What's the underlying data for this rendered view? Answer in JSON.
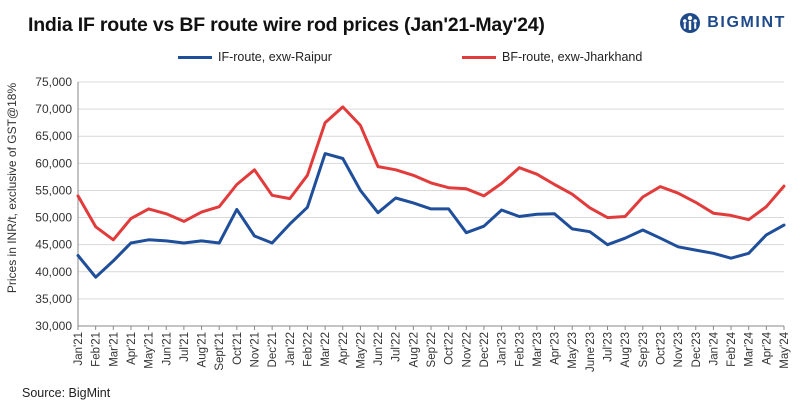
{
  "brand": {
    "name": "BIGMINT",
    "icon": "bigmint-logo-icon"
  },
  "source": "Source: BigMint",
  "colors": {
    "if_route": "#1f4e9a",
    "bf_route": "#e23b3b",
    "grid": "#d9d9d9",
    "axis": "#888888"
  },
  "chart_data": {
    "type": "line",
    "title": "India IF route vs BF route wire rod prices (Jan'21-May'24)",
    "xlabel": "",
    "ylabel": "Prices in INR/t, exclusive of GST@18%",
    "ylim": [
      30000,
      75000
    ],
    "yticks": [
      30000,
      35000,
      40000,
      45000,
      50000,
      55000,
      60000,
      65000,
      70000,
      75000
    ],
    "ytick_labels": [
      "30,000",
      "35,000",
      "40,000",
      "45,000",
      "50,000",
      "55,000",
      "60,000",
      "65,000",
      "70,000",
      "75,000"
    ],
    "grid": true,
    "legend_position": "top",
    "categories": [
      "Jan'21",
      "Feb'21",
      "Mar'21",
      "Apr'21",
      "May'21",
      "Jun'21",
      "Jul'21",
      "Aug'21",
      "Sept'21",
      "Oct'21",
      "Nov'21",
      "Dec'21",
      "Jan'22",
      "Feb'22",
      "Mar'22",
      "Apr'22",
      "May'22",
      "Jun'22",
      "Jul'22",
      "Aug'22",
      "Sep'22",
      "Oct'22",
      "Nov'22",
      "Dec'22",
      "Jan'23",
      "Feb'23",
      "Mar'23",
      "Apr'23",
      "May'23",
      "June'23",
      "Jul'23",
      "Aug'23",
      "Sep'23",
      "Oct'23",
      "Nov'23",
      "Dec'23",
      "Jan'24",
      "Feb'24",
      "Mar'24",
      "Apr'24",
      "May'24"
    ],
    "series": [
      {
        "name": "IF-route, exw-Raipur",
        "color": "#1f4e9a",
        "values": [
          43000,
          39000,
          42000,
          45300,
          45900,
          45700,
          45300,
          45700,
          45300,
          51500,
          46600,
          45300,
          48800,
          51900,
          61800,
          60900,
          55000,
          50900,
          53600,
          52700,
          51600,
          51600,
          47200,
          48400,
          51400,
          50200,
          50600,
          50700,
          47900,
          47400,
          45000,
          46200,
          47700,
          46200,
          44600,
          44000,
          43400,
          42500,
          43400,
          46800,
          48600
        ]
      },
      {
        "name": "BF-route, exw-Jharkhand",
        "color": "#e23b3b",
        "values": [
          54000,
          48300,
          45900,
          49800,
          51600,
          50700,
          49300,
          51000,
          52000,
          56100,
          58800,
          54100,
          53500,
          57800,
          67500,
          70400,
          67000,
          59400,
          58800,
          57800,
          56400,
          55500,
          55300,
          54000,
          56300,
          59200,
          58000,
          56100,
          54300,
          51800,
          50000,
          50200,
          53800,
          55700,
          54500,
          52800,
          50800,
          50400,
          49600,
          52000,
          55800
        ]
      }
    ]
  }
}
